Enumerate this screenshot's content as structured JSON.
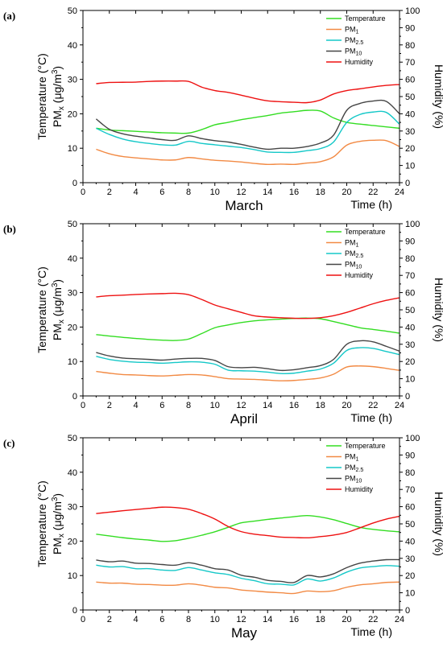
{
  "chart_data": [
    {
      "type": "line",
      "panel_label": "(a)",
      "title": "March",
      "xlabel": "Time (h)",
      "ylabel_lines": [
        "Temperature (°C)",
        "PMx (μg/m3)"
      ],
      "ylabel_right": "Humidity (%)",
      "xlim": [
        0,
        24
      ],
      "x_ticks": [
        0,
        2,
        4,
        6,
        8,
        10,
        12,
        14,
        16,
        18,
        20,
        22,
        24
      ],
      "ylim_left": [
        0,
        50
      ],
      "y_ticks_left": [
        0,
        10,
        20,
        30,
        40,
        50
      ],
      "ylim_right": [
        0,
        100
      ],
      "y_ticks_right": [
        0,
        10,
        20,
        30,
        40,
        50,
        60,
        70,
        80,
        90,
        100
      ],
      "legend_position": "top-right",
      "x": [
        1,
        2,
        3,
        4,
        5,
        6,
        7,
        8,
        9,
        10,
        11,
        12,
        13,
        14,
        15,
        16,
        17,
        18,
        19,
        20,
        21,
        22,
        23,
        24
      ],
      "series": [
        {
          "name": "Temperature",
          "axis": "left",
          "color": "#33dd22",
          "values": [
            15.8,
            15.3,
            15.1,
            14.9,
            14.7,
            14.5,
            14.4,
            14.4,
            15.4,
            16.8,
            17.5,
            18.3,
            18.9,
            19.5,
            20.2,
            20.6,
            21.0,
            20.8,
            18.8,
            17.5,
            17.0,
            16.6,
            16.2,
            15.8
          ]
        },
        {
          "name": "PM1",
          "axis": "left",
          "color": "#f28a44",
          "values": [
            9.7,
            8.4,
            7.6,
            7.2,
            6.9,
            6.6,
            6.6,
            7.3,
            6.9,
            6.5,
            6.3,
            6.0,
            5.6,
            5.3,
            5.4,
            5.3,
            5.7,
            6.1,
            7.5,
            10.9,
            12.0,
            12.3,
            12.2,
            10.5
          ]
        },
        {
          "name": "PM2.5",
          "axis": "left",
          "color": "#15c8c8",
          "values": [
            15.8,
            14.0,
            12.7,
            11.9,
            11.4,
            11.0,
            10.9,
            12.0,
            11.4,
            11.0,
            10.6,
            10.2,
            9.6,
            8.9,
            8.8,
            8.8,
            9.3,
            9.9,
            11.8,
            17.5,
            19.8,
            20.5,
            20.4,
            17.0
          ]
        },
        {
          "name": "PM10",
          "axis": "left",
          "color": "#454545",
          "values": [
            18.5,
            15.5,
            14.2,
            13.5,
            13.0,
            12.5,
            12.3,
            13.6,
            12.8,
            12.2,
            11.8,
            11.1,
            10.3,
            9.7,
            10.0,
            10.0,
            10.5,
            11.5,
            13.8,
            21.0,
            23.0,
            23.7,
            23.6,
            20.0
          ]
        },
        {
          "name": "Humidity",
          "axis": "right",
          "color": "#ee1111",
          "values": [
            57.5,
            58.2,
            58.3,
            58.4,
            58.8,
            59.0,
            59.0,
            58.8,
            55.5,
            53.5,
            52.4,
            50.8,
            49.0,
            47.5,
            47.0,
            46.7,
            46.5,
            48.0,
            51.5,
            53.5,
            54.5,
            55.6,
            56.5,
            57.0
          ]
        }
      ]
    },
    {
      "type": "line",
      "panel_label": "(b)",
      "title": "April",
      "xlabel": "Time (h)",
      "ylabel_lines": [
        "Temperature (°C)",
        "PMx (μg/m3)"
      ],
      "ylabel_right": "Humidity (%)",
      "xlim": [
        0,
        24
      ],
      "x_ticks": [
        0,
        2,
        4,
        6,
        8,
        10,
        12,
        14,
        16,
        18,
        20,
        22,
        24
      ],
      "ylim_left": [
        0,
        50
      ],
      "y_ticks_left": [
        0,
        10,
        20,
        30,
        40,
        50
      ],
      "ylim_right": [
        0,
        100
      ],
      "y_ticks_right": [
        0,
        10,
        20,
        30,
        40,
        50,
        60,
        70,
        80,
        90,
        100
      ],
      "legend_position": "top-right",
      "x": [
        1,
        2,
        3,
        4,
        5,
        6,
        7,
        8,
        9,
        10,
        11,
        12,
        13,
        14,
        15,
        16,
        17,
        18,
        19,
        20,
        21,
        22,
        23,
        24
      ],
      "series": [
        {
          "name": "Temperature",
          "axis": "left",
          "color": "#33dd22",
          "values": [
            17.8,
            17.4,
            17.0,
            16.7,
            16.4,
            16.2,
            16.1,
            16.5,
            18.1,
            19.8,
            20.6,
            21.3,
            21.8,
            22.1,
            22.3,
            22.5,
            22.6,
            22.4,
            21.6,
            20.7,
            19.8,
            19.3,
            18.8,
            18.2
          ]
        },
        {
          "name": "PM1",
          "axis": "left",
          "color": "#f28a44",
          "values": [
            7.1,
            6.6,
            6.2,
            6.1,
            5.9,
            5.8,
            6.0,
            6.2,
            6.1,
            5.6,
            5.0,
            4.9,
            4.8,
            4.6,
            4.4,
            4.5,
            4.8,
            5.2,
            6.3,
            8.4,
            8.7,
            8.5,
            8.0,
            7.4
          ]
        },
        {
          "name": "PM2.5",
          "axis": "left",
          "color": "#15c8c8",
          "values": [
            11.5,
            10.6,
            10.1,
            9.8,
            9.7,
            9.5,
            9.7,
            9.9,
            9.8,
            9.2,
            7.5,
            7.3,
            7.2,
            6.9,
            6.5,
            6.6,
            7.2,
            7.8,
            9.5,
            13.2,
            14.0,
            13.8,
            12.9,
            12.0
          ]
        },
        {
          "name": "PM10",
          "axis": "left",
          "color": "#454545",
          "values": [
            12.6,
            11.6,
            11.0,
            10.8,
            10.6,
            10.4,
            10.7,
            10.9,
            10.9,
            10.3,
            8.5,
            8.2,
            8.3,
            7.9,
            7.4,
            7.6,
            8.2,
            8.8,
            10.6,
            15.0,
            16.0,
            15.7,
            14.4,
            13.0
          ]
        },
        {
          "name": "Humidity",
          "axis": "right",
          "color": "#ee1111",
          "values": [
            57.5,
            58.2,
            58.5,
            58.9,
            59.2,
            59.4,
            59.6,
            58.8,
            56.0,
            52.8,
            50.6,
            48.5,
            46.5,
            45.8,
            45.4,
            45.1,
            45.0,
            45.4,
            46.6,
            48.5,
            51.0,
            53.5,
            55.5,
            57.0
          ]
        }
      ]
    },
    {
      "type": "line",
      "panel_label": "(c)",
      "title": "May",
      "xlabel": "Time (h)",
      "ylabel_lines": [
        "Temperature (°C)",
        "PMx (μg/m3)"
      ],
      "ylabel_right": "Humidity (%)",
      "xlim": [
        0,
        24
      ],
      "x_ticks": [
        0,
        2,
        4,
        6,
        8,
        10,
        12,
        14,
        16,
        18,
        20,
        22,
        24
      ],
      "ylim_left": [
        0,
        50
      ],
      "y_ticks_left": [
        0,
        10,
        20,
        30,
        40,
        50
      ],
      "ylim_right": [
        0,
        100
      ],
      "y_ticks_right": [
        0,
        10,
        20,
        30,
        40,
        50,
        60,
        70,
        80,
        90,
        100
      ],
      "legend_position": "top-right",
      "x": [
        1,
        2,
        3,
        4,
        5,
        6,
        7,
        8,
        9,
        10,
        11,
        12,
        13,
        14,
        15,
        16,
        17,
        18,
        19,
        20,
        21,
        22,
        23,
        24
      ],
      "series": [
        {
          "name": "Temperature",
          "axis": "left",
          "color": "#33dd22",
          "values": [
            22.0,
            21.5,
            21.0,
            20.6,
            20.3,
            19.9,
            20.1,
            20.8,
            21.7,
            22.7,
            24.0,
            25.3,
            25.8,
            26.3,
            26.7,
            27.1,
            27.4,
            27.0,
            26.2,
            25.1,
            24.0,
            23.4,
            23.0,
            22.7
          ]
        },
        {
          "name": "PM1",
          "axis": "left",
          "color": "#f28a44",
          "values": [
            8.1,
            7.8,
            7.8,
            7.5,
            7.4,
            7.2,
            7.2,
            7.6,
            7.2,
            6.6,
            6.4,
            5.8,
            5.5,
            5.2,
            5.0,
            4.8,
            5.5,
            5.3,
            5.6,
            6.6,
            7.3,
            7.6,
            8.0,
            8.1
          ]
        },
        {
          "name": "PM2.5",
          "axis": "left",
          "color": "#15c8c8",
          "values": [
            13.0,
            12.5,
            12.6,
            12.0,
            12.0,
            11.6,
            11.5,
            12.3,
            11.6,
            10.8,
            10.3,
            9.2,
            8.5,
            7.6,
            7.5,
            7.3,
            9.0,
            8.4,
            9.3,
            11.0,
            12.2,
            12.6,
            12.9,
            12.7
          ]
        },
        {
          "name": "PM10",
          "axis": "left",
          "color": "#454545",
          "values": [
            14.5,
            14.0,
            14.2,
            13.6,
            13.5,
            13.2,
            13.0,
            13.7,
            13.0,
            12.0,
            11.6,
            10.1,
            9.5,
            8.6,
            8.3,
            8.0,
            10.0,
            9.6,
            10.5,
            12.3,
            13.6,
            14.2,
            14.6,
            14.6
          ]
        },
        {
          "name": "Humidity",
          "axis": "right",
          "color": "#ee1111",
          "values": [
            56.0,
            56.8,
            57.6,
            58.3,
            59.0,
            59.7,
            59.5,
            58.5,
            56.0,
            52.8,
            48.5,
            45.5,
            44.0,
            43.2,
            42.3,
            42.1,
            41.9,
            42.6,
            43.5,
            45.0,
            47.7,
            50.5,
            52.8,
            54.4
          ]
        }
      ]
    }
  ]
}
